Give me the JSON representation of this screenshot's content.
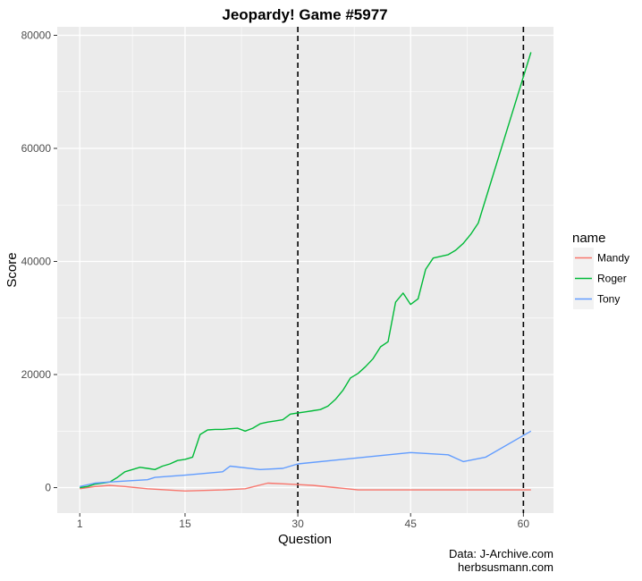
{
  "chart_data": {
    "type": "line",
    "title": "Jeopardy! Game #5977",
    "xlabel": "Question",
    "ylabel": "Score",
    "xlim": [
      -2,
      64
    ],
    "ylim": [
      -4500,
      81500
    ],
    "x_ticks": [
      1,
      15,
      30,
      45,
      60
    ],
    "y_ticks": [
      0,
      20000,
      40000,
      60000,
      80000
    ],
    "grid": true,
    "background": "#ebebeb",
    "legend": {
      "title": "name",
      "placement": "right"
    },
    "vlines": [
      30,
      60
    ],
    "series": [
      {
        "name": "Mandy",
        "color": "#f8766d",
        "points": [
          [
            1,
            -200
          ],
          [
            3,
            200
          ],
          [
            5,
            400
          ],
          [
            7,
            200
          ],
          [
            10,
            -200
          ],
          [
            15,
            -600
          ],
          [
            20,
            -400
          ],
          [
            23,
            -200
          ],
          [
            26,
            800
          ],
          [
            29,
            600
          ],
          [
            32,
            400
          ],
          [
            35,
            0
          ],
          [
            38,
            -400
          ],
          [
            45,
            -400
          ],
          [
            50,
            -400
          ],
          [
            55,
            -400
          ],
          [
            61,
            -400
          ]
        ]
      },
      {
        "name": "Roger",
        "color": "#00ba38",
        "points": [
          [
            1,
            0
          ],
          [
            2,
            200
          ],
          [
            3,
            600
          ],
          [
            4,
            800
          ],
          [
            5,
            1000
          ],
          [
            6,
            1800
          ],
          [
            7,
            2800
          ],
          [
            8,
            3200
          ],
          [
            9,
            3600
          ],
          [
            10,
            3400
          ],
          [
            11,
            3200
          ],
          [
            12,
            3800
          ],
          [
            13,
            4200
          ],
          [
            14,
            4800
          ],
          [
            15,
            5000
          ],
          [
            16,
            5400
          ],
          [
            17,
            9400
          ],
          [
            18,
            10200
          ],
          [
            19,
            10300
          ],
          [
            20,
            10300
          ],
          [
            21,
            10400
          ],
          [
            22,
            10500
          ],
          [
            23,
            10000
          ],
          [
            24,
            10500
          ],
          [
            25,
            11300
          ],
          [
            26,
            11600
          ],
          [
            27,
            11800
          ],
          [
            28,
            12000
          ],
          [
            29,
            13000
          ],
          [
            30,
            13200
          ],
          [
            31,
            13400
          ],
          [
            32,
            13600
          ],
          [
            33,
            13800
          ],
          [
            34,
            14400
          ],
          [
            35,
            15600
          ],
          [
            36,
            17200
          ],
          [
            37,
            19400
          ],
          [
            38,
            20200
          ],
          [
            39,
            21400
          ],
          [
            40,
            22800
          ],
          [
            41,
            24900
          ],
          [
            42,
            25800
          ],
          [
            43,
            32800
          ],
          [
            44,
            34400
          ],
          [
            45,
            32400
          ],
          [
            46,
            33400
          ],
          [
            47,
            38600
          ],
          [
            48,
            40600
          ],
          [
            49,
            40900
          ],
          [
            50,
            41200
          ],
          [
            51,
            42000
          ],
          [
            52,
            43200
          ],
          [
            53,
            44800
          ],
          [
            54,
            46800
          ],
          [
            61,
            77000
          ]
        ]
      },
      {
        "name": "Tony",
        "color": "#619cff",
        "points": [
          [
            1,
            200
          ],
          [
            3,
            800
          ],
          [
            5,
            1000
          ],
          [
            10,
            1400
          ],
          [
            11,
            1800
          ],
          [
            15,
            2200
          ],
          [
            20,
            2800
          ],
          [
            21,
            3800
          ],
          [
            25,
            3200
          ],
          [
            28,
            3400
          ],
          [
            30,
            4200
          ],
          [
            45,
            6200
          ],
          [
            50,
            5800
          ],
          [
            52,
            4600
          ],
          [
            55,
            5400
          ],
          [
            61,
            10000
          ]
        ]
      }
    ]
  },
  "captions": {
    "line1": "Data: J-Archive.com",
    "line2": "herbsusmann.com"
  }
}
